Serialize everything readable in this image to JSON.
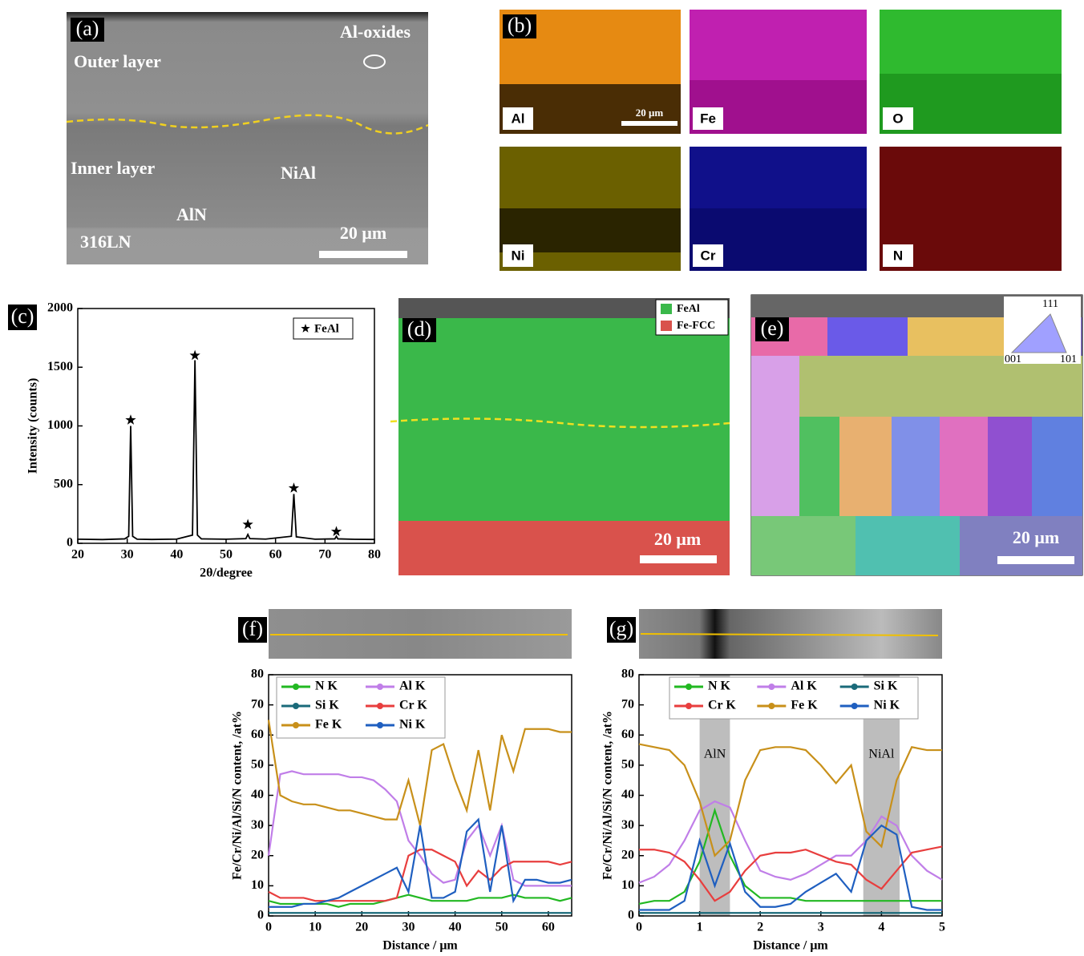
{
  "panel_a": {
    "label": "(a)",
    "oxides": "Al-oxides",
    "outer": "Outer layer",
    "inner": "Inner layer",
    "nial": "NiAl",
    "aln": "AlN",
    "substrate": "316LN",
    "scale": "20 μm"
  },
  "panel_b": {
    "label": "(b)",
    "scale": "20 μm",
    "maps": [
      "Al",
      "Fe",
      "O",
      "Ni",
      "Cr",
      "N"
    ]
  },
  "panel_d": {
    "label": "(d)",
    "legend": [
      "FeAl",
      "Fe-FCC"
    ],
    "scale": "20 μm"
  },
  "panel_e": {
    "label": "(e)",
    "key": [
      "111",
      "001",
      "101"
    ],
    "scale": "20 μm"
  },
  "chart_data": [
    {
      "type": "line",
      "panel_label": "(c)",
      "x_label": "2θ/degree",
      "y_label": "Intensity (counts)",
      "x": [
        20,
        25,
        29.5,
        30.3,
        30.7,
        31.1,
        32,
        35,
        40,
        43.2,
        43.7,
        44.2,
        45,
        50,
        54,
        54.4,
        54.8,
        58,
        63.2,
        63.7,
        64.2,
        68,
        72,
        72.3,
        72.6,
        76,
        80
      ],
      "values": [
        35,
        32,
        38,
        60,
        1000,
        60,
        35,
        33,
        36,
        70,
        1560,
        70,
        38,
        35,
        40,
        75,
        40,
        36,
        60,
        420,
        55,
        35,
        38,
        60,
        38,
        34,
        33
      ],
      "color": "#000000",
      "peaks": {
        "name": "FeAl",
        "x": [
          30.7,
          43.7,
          54.4,
          63.7,
          72.3
        ],
        "values": [
          1050,
          1600,
          160,
          470,
          100
        ]
      },
      "xlim": [
        20,
        80
      ],
      "xticks": [
        20,
        30,
        40,
        50,
        60,
        70,
        80
      ],
      "ylim": [
        0,
        2000
      ],
      "yticks": [
        0,
        500,
        1000,
        1500,
        2000
      ]
    },
    {
      "type": "line",
      "panel_label": "(f)",
      "x_label": "Distance / μm",
      "y_label": "Fe/Cr/Ni/Al/Si/N content, /at%",
      "x": [
        0,
        2.5,
        5,
        7.5,
        10,
        12.5,
        15,
        17.5,
        20,
        22.5,
        25,
        27.5,
        30,
        32.5,
        35,
        37.5,
        40,
        42.5,
        45,
        47.5,
        50,
        52.5,
        55,
        57.5,
        60,
        62.5,
        65
      ],
      "series": [
        {
          "name": "N K",
          "color": "#22b822",
          "values": [
            5,
            4,
            4,
            4,
            4,
            4,
            3,
            4,
            4,
            4,
            5,
            6,
            7,
            6,
            5,
            5,
            5,
            5,
            6,
            6,
            6,
            7,
            6,
            6,
            6,
            5,
            6
          ]
        },
        {
          "name": "Al K",
          "color": "#c07ee8",
          "values": [
            20,
            47,
            48,
            47,
            47,
            47,
            47,
            46,
            46,
            45,
            42,
            38,
            25,
            20,
            14,
            11,
            12,
            25,
            30,
            20,
            30,
            12,
            10,
            10,
            10,
            10,
            10
          ]
        },
        {
          "name": "Si K",
          "color": "#1a6a7a",
          "values": [
            1,
            1,
            1,
            1,
            1,
            1,
            1,
            1,
            1,
            1,
            1,
            1,
            1,
            1,
            1,
            1,
            1,
            1,
            1,
            1,
            1,
            1,
            1,
            1,
            1,
            1,
            1
          ]
        },
        {
          "name": "Cr K",
          "color": "#e83e3e",
          "values": [
            8,
            6,
            6,
            6,
            5,
            5,
            5,
            5,
            5,
            5,
            5,
            6,
            20,
            22,
            22,
            20,
            18,
            10,
            15,
            12,
            16,
            18,
            18,
            18,
            18,
            17,
            18
          ]
        },
        {
          "name": "Fe K",
          "color": "#c8901a",
          "values": [
            65,
            40,
            38,
            37,
            37,
            36,
            35,
            35,
            34,
            33,
            32,
            32,
            45,
            30,
            55,
            57,
            45,
            35,
            55,
            35,
            60,
            48,
            62,
            62,
            62,
            61,
            61
          ]
        },
        {
          "name": "Ni K",
          "color": "#1f5fc0",
          "values": [
            3,
            3,
            3,
            4,
            4,
            5,
            6,
            8,
            10,
            12,
            14,
            16,
            8,
            30,
            6,
            6,
            8,
            28,
            32,
            8,
            30,
            5,
            12,
            12,
            11,
            11,
            12
          ]
        }
      ],
      "xlim": [
        0,
        65
      ],
      "xticks": [
        0,
        10,
        20,
        30,
        40,
        50,
        60
      ],
      "ylim": [
        0,
        80
      ],
      "yticks": [
        0,
        10,
        20,
        30,
        40,
        50,
        60,
        70,
        80
      ]
    },
    {
      "type": "line",
      "panel_label": "(g)",
      "x_label": "Distance / μm",
      "y_label": "Fe/Cr/Ni/Al/Si/N content, /at%",
      "x": [
        0,
        0.25,
        0.5,
        0.75,
        1,
        1.25,
        1.5,
        1.75,
        2,
        2.25,
        2.5,
        2.75,
        3,
        3.25,
        3.5,
        3.75,
        4,
        4.25,
        4.5,
        4.75,
        5
      ],
      "series": [
        {
          "name": "N K",
          "color": "#22b822",
          "values": [
            4,
            5,
            5,
            8,
            18,
            35,
            20,
            10,
            6,
            6,
            6,
            5,
            5,
            5,
            5,
            5,
            5,
            5,
            5,
            5,
            5
          ]
        },
        {
          "name": "Al K",
          "color": "#c07ee8",
          "values": [
            11,
            13,
            17,
            25,
            35,
            38,
            36,
            25,
            15,
            13,
            12,
            14,
            17,
            20,
            20,
            25,
            33,
            30,
            20,
            15,
            12
          ]
        },
        {
          "name": "Si K",
          "color": "#1a6a7a",
          "values": [
            1,
            1,
            1,
            1,
            1,
            1,
            1,
            1,
            1,
            1,
            1,
            1,
            1,
            1,
            1,
            1,
            1,
            1,
            1,
            1,
            1
          ]
        },
        {
          "name": "Cr K",
          "color": "#e83e3e",
          "values": [
            22,
            22,
            21,
            18,
            12,
            5,
            8,
            15,
            20,
            21,
            21,
            22,
            20,
            18,
            17,
            12,
            9,
            15,
            21,
            22,
            23
          ]
        },
        {
          "name": "Fe K",
          "color": "#c8901a",
          "values": [
            57,
            56,
            55,
            50,
            38,
            20,
            25,
            45,
            55,
            56,
            56,
            55,
            50,
            44,
            50,
            28,
            23,
            45,
            56,
            55,
            55
          ]
        },
        {
          "name": "Ni K",
          "color": "#1f5fc0",
          "values": [
            2,
            2,
            2,
            5,
            25,
            10,
            24,
            8,
            3,
            3,
            4,
            8,
            11,
            14,
            8,
            25,
            30,
            27,
            3,
            2,
            2
          ]
        }
      ],
      "bands": [
        {
          "from": 1,
          "to": 1.5,
          "label": "AlN"
        },
        {
          "from": 3.7,
          "to": 4.3,
          "label": "NiAl"
        }
      ],
      "xlim": [
        0,
        5
      ],
      "xticks": [
        0,
        1,
        2,
        3,
        4,
        5
      ],
      "ylim": [
        0,
        80
      ],
      "yticks": [
        0,
        10,
        20,
        30,
        40,
        50,
        60,
        70,
        80
      ]
    }
  ]
}
